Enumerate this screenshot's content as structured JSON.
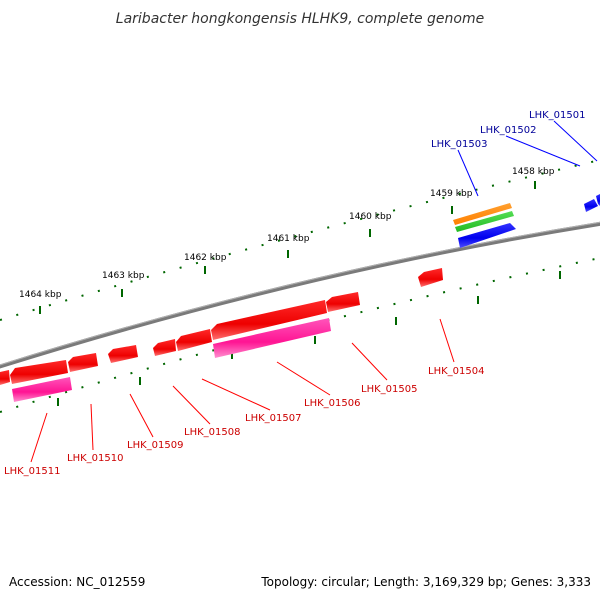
{
  "title": "Laribacter hongkongensis HLHK9, complete genome",
  "footer": {
    "accession": "Accession: NC_012559",
    "summary": "Topology: circular; Length: 3,169,329 bp; Genes: 3,333"
  },
  "colors": {
    "forward_gene": "#0000ff",
    "reverse_gene": "#ff0000",
    "rrna": "#ff33aa",
    "orange_feature": "#ff8800",
    "green_feature": "#33cc33",
    "tick": "#006600",
    "backbone": "#888888",
    "forward_label": "#000099",
    "reverse_label": "#cc0000"
  },
  "scale_labels": [
    "1458 kbp",
    "1459 kbp",
    "1460 kbp",
    "1461 kbp",
    "1462 kbp",
    "1463 kbp",
    "1464 kbp"
  ],
  "gene_labels": {
    "forward": [
      "LHK_01501",
      "LHK_01502",
      "LHK_01503"
    ],
    "reverse": [
      "LHK_01504",
      "LHK_01505",
      "LHK_01506",
      "LHK_01507",
      "LHK_01508",
      "LHK_01509",
      "LHK_01510",
      "LHK_01511"
    ]
  }
}
